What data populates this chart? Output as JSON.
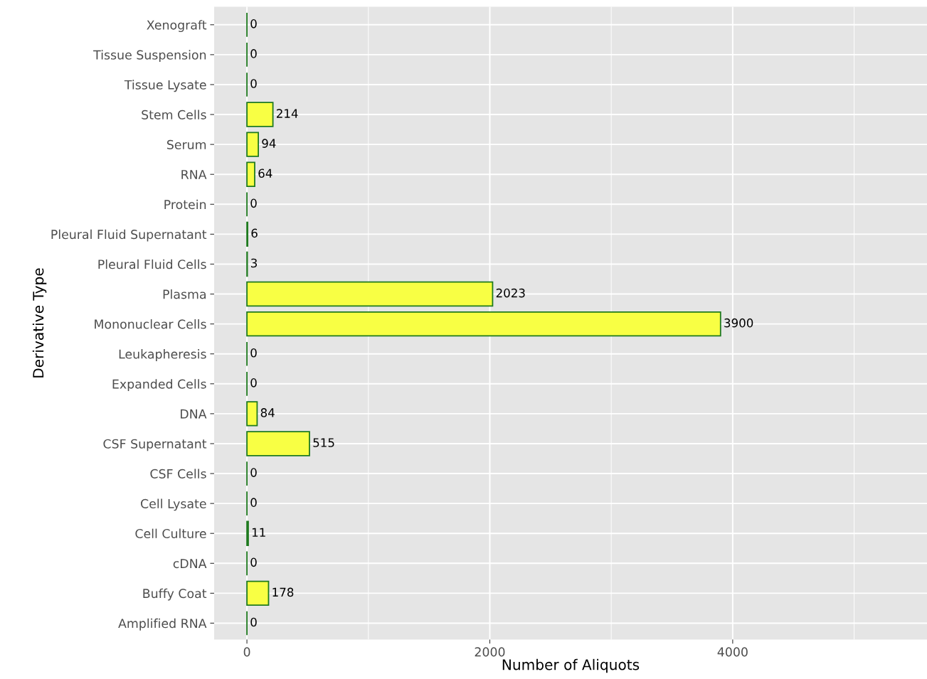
{
  "chart_data": {
    "type": "bar",
    "orientation": "horizontal",
    "xlabel": "Number of Aliquots",
    "ylabel": "Derivative Type",
    "categories": [
      "Xenograft",
      "Tissue Suspension",
      "Tissue Lysate",
      "Stem Cells",
      "Serum",
      "RNA",
      "Protein",
      "Pleural Fluid Supernatant",
      "Pleural Fluid Cells",
      "Plasma",
      "Mononuclear Cells",
      "Leukapheresis",
      "Expanded Cells",
      "DNA",
      "CSF Supernatant",
      "CSF Cells",
      "Cell Lysate",
      "Cell Culture",
      "cDNA",
      "Buffy Coat",
      "Amplified RNA"
    ],
    "values": [
      0,
      0,
      0,
      214,
      94,
      64,
      0,
      6,
      3,
      2023,
      3900,
      0,
      0,
      84,
      515,
      0,
      0,
      11,
      0,
      178,
      0
    ],
    "colors": [
      "#1f7a1f",
      "#1f7a1f",
      "#1f7a1f",
      "#f8ff44",
      "#f8ff44",
      "#f8ff44",
      "#1f7a1f",
      "#1f7a1f",
      "#1f7a1f",
      "#f8ff44",
      "#f8ff44",
      "#1f7a1f",
      "#1f7a1f",
      "#f8ff44",
      "#f8ff44",
      "#1f7a1f",
      "#1f7a1f",
      "#1f7a1f",
      "#1f7a1f",
      "#f8ff44",
      "#1f7a1f"
    ],
    "xlim": [
      -270,
      5600
    ],
    "xticks": [
      0,
      2000,
      4000
    ],
    "grid": true,
    "data_labels": true
  }
}
